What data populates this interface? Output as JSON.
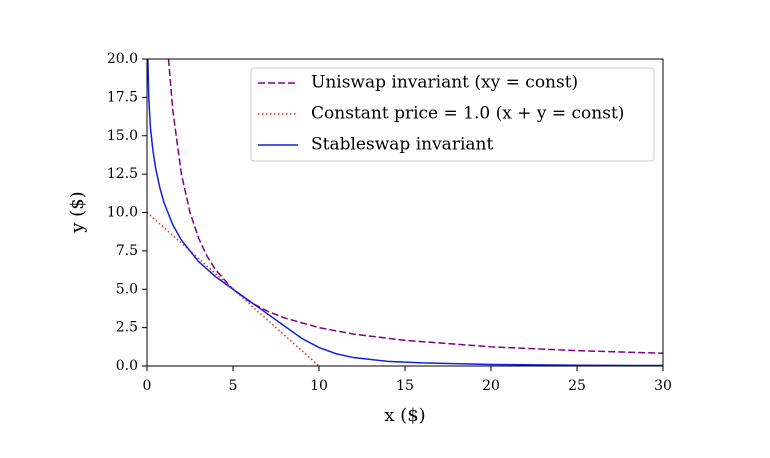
{
  "chart_data": {
    "type": "line",
    "xlabel": "x ($)",
    "ylabel": "y ($)",
    "xlim": [
      0,
      30
    ],
    "ylim": [
      0,
      20
    ],
    "xticks": [
      0,
      5,
      10,
      15,
      20,
      25,
      30
    ],
    "yticks": [
      {
        "value": 0,
        "label": "0.0"
      },
      2.5,
      {
        "value": 5,
        "label": "5.0"
      },
      7.5,
      {
        "value": 10,
        "label": "10.0"
      },
      12.5,
      {
        "value": 15,
        "label": "15.0"
      },
      17.5,
      {
        "value": 20,
        "label": "20.0"
      }
    ],
    "legend": "upper right",
    "series": [
      {
        "name": "Uniswap invariant (xy = const)",
        "color": "#800080",
        "style": "dashed",
        "x": [
          1.25,
          1.5,
          2,
          2.5,
          3,
          3.5,
          4,
          5,
          6,
          7,
          8,
          10,
          12,
          15,
          20,
          25,
          30
        ],
        "values": [
          20,
          16.67,
          12.5,
          10,
          8.33,
          7.14,
          6.25,
          5,
          4.17,
          3.57,
          3.13,
          2.5,
          2.08,
          1.67,
          1.25,
          1,
          0.83
        ]
      },
      {
        "name": "Constant price = 1.0 (x + y = const)",
        "color": "#e03020",
        "style": "dotted",
        "x": [
          0,
          10
        ],
        "values": [
          10,
          0
        ]
      },
      {
        "name": "Stableswap invariant",
        "color": "#1020e0",
        "style": "solid",
        "x": [
          0.05,
          0.1,
          0.2,
          0.35,
          0.5,
          0.75,
          1,
          1.5,
          2,
          3,
          4,
          5,
          6,
          7,
          8,
          9,
          10,
          11,
          12,
          14,
          16,
          20,
          25,
          30
        ],
        "values": [
          20,
          17.5,
          15.5,
          14,
          12.9,
          11.6,
          10.6,
          9.2,
          8.2,
          6.8,
          5.8,
          5,
          4.2,
          3.4,
          2.6,
          1.8,
          1.2,
          0.8,
          0.55,
          0.3,
          0.2,
          0.1,
          0.05,
          0.03
        ]
      }
    ]
  }
}
